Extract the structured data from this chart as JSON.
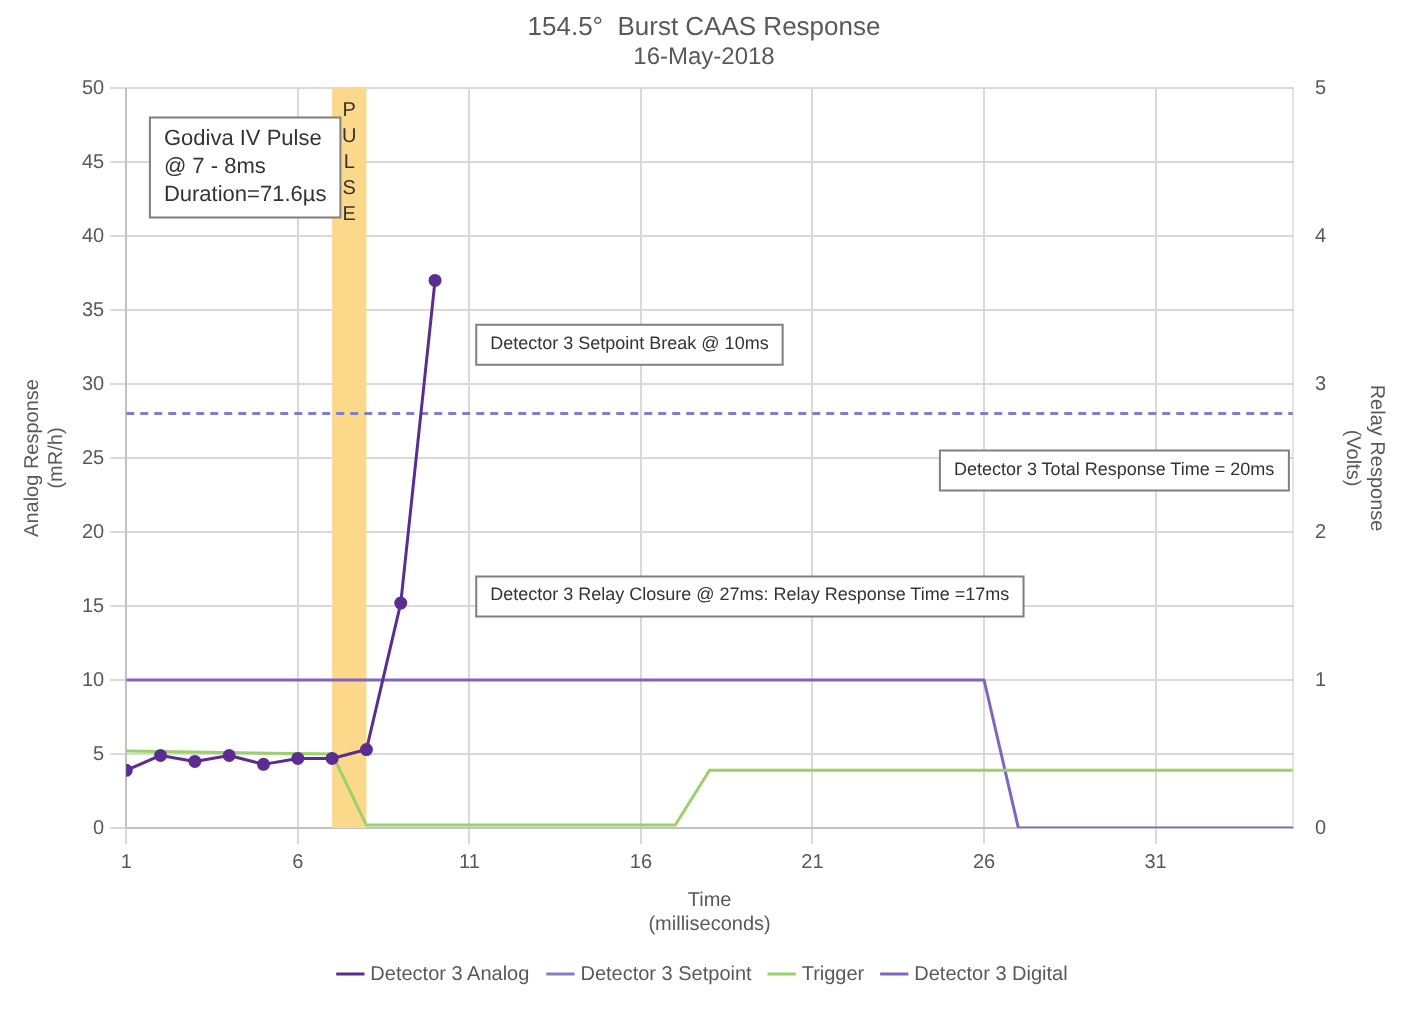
{
  "chart_data": {
    "type": "line",
    "title": "154.5°  Burst CAAS Response",
    "subtitle": "16-May-2018",
    "xlabel": "Time\n(milliseconds)",
    "ylabel": "Analog Response\n(mR/h)",
    "y2label": "Relay Response\n(Volts)",
    "xlim": [
      1,
      35
    ],
    "xticks": [
      1,
      6,
      11,
      16,
      21,
      26,
      31
    ],
    "ylim": [
      0,
      50
    ],
    "yticks": [
      0,
      5,
      10,
      15,
      20,
      25,
      30,
      35,
      40,
      45,
      50
    ],
    "y2lim": [
      0,
      5
    ],
    "y2ticks": [
      0,
      1,
      2,
      3,
      4,
      5
    ],
    "series": [
      {
        "name": "Detector 3 Analog",
        "color": "#5b2d90",
        "marker": "circle",
        "line_style": "solid",
        "x": [
          1,
          2,
          3,
          4,
          5,
          6,
          7,
          8,
          9,
          10
        ],
        "values": [
          3.9,
          4.9,
          4.5,
          4.9,
          4.3,
          4.7,
          4.7,
          5.3,
          15.2,
          37
        ]
      },
      {
        "name": "Detector 3 Setpoint",
        "color": "#8080c8",
        "marker": "none",
        "line_style": "dashed",
        "x": [
          1,
          35
        ],
        "values": [
          28,
          28
        ]
      },
      {
        "name": "Trigger",
        "color": "#9bd06a",
        "marker": "none",
        "line_style": "solid",
        "axis": "y2",
        "x": [
          1,
          7,
          8,
          17,
          18,
          35
        ],
        "values": [
          0.52,
          0.5,
          0.02,
          0.02,
          0.39,
          0.39
        ]
      },
      {
        "name": "Detector 3 Digital",
        "color": "#8064c0",
        "marker": "none",
        "line_style": "solid",
        "axis": "y2",
        "x": [
          1,
          26,
          27,
          35
        ],
        "values": [
          1,
          1,
          0,
          0
        ]
      }
    ],
    "bands": [
      {
        "axis": "x",
        "from": 7,
        "to": 8,
        "label": "PULSE",
        "color": "#fcd98a"
      }
    ],
    "annotations": [
      "Godiva IV Pulse\n@ 7 - 8ms\nDuration=71.6µs",
      "Detector 3 Setpoint Break @ 10ms",
      "Detector 3 Total Response Time = 20ms",
      "Detector 3 Relay Closure @ 27ms: Relay Response Time =17ms"
    ],
    "grid": true,
    "legend": "bottom"
  }
}
